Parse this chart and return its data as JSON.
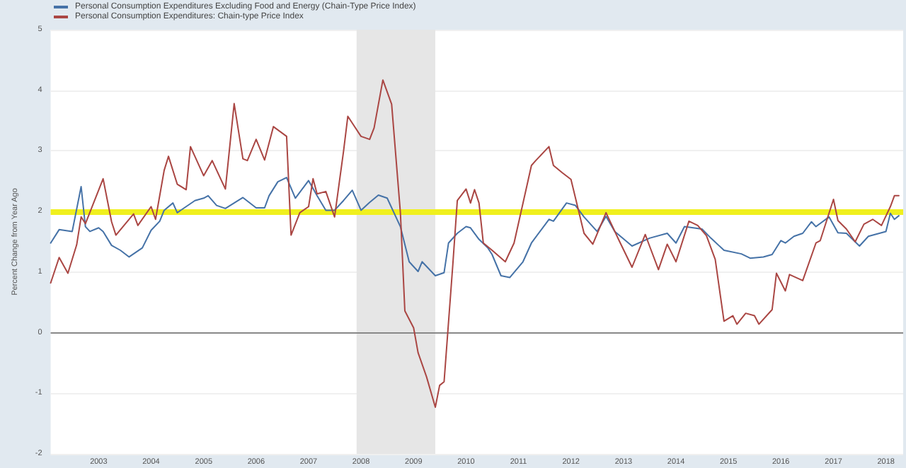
{
  "chart_data": {
    "type": "line",
    "ylabel": "Percent Change from Year Ago",
    "xlim": [
      "2002-02",
      "2018-05"
    ],
    "xticks": [
      "2003",
      "2004",
      "2005",
      "2006",
      "2007",
      "2008",
      "2009",
      "2010",
      "2011",
      "2012",
      "2013",
      "2014",
      "2015",
      "2016",
      "2017",
      "2018"
    ],
    "ylim": [
      -2,
      5
    ],
    "yticks": [
      -2,
      -1,
      0,
      1,
      2,
      3,
      4,
      5
    ],
    "grid": "y",
    "legend": "top left",
    "ref_lines": [
      {
        "axis": "y",
        "value": 2,
        "color": "#f0f01e"
      },
      {
        "axis": "y",
        "value": 0,
        "color": "#888888"
      }
    ],
    "bands": [
      {
        "axis": "x",
        "from": "2007-12",
        "to": "2009-06",
        "color": "#e6e6e6"
      }
    ],
    "series": [
      {
        "name": "Personal Consumption Expenditures Excluding Food and Energy (Chain-Type Price Index)",
        "color": "#4572a7",
        "x": [
          "2002-02",
          "2002-04",
          "2002-07",
          "2002-09",
          "2002-10",
          "2002-11",
          "2003-01",
          "2003-02",
          "2003-04",
          "2003-06",
          "2003-08",
          "2003-11",
          "2004-01",
          "2004-03",
          "2004-04",
          "2004-06",
          "2004-07",
          "2004-11",
          "2005-01",
          "2005-02",
          "2005-04",
          "2005-06",
          "2005-08",
          "2005-10",
          "2006-01",
          "2006-03",
          "2006-04",
          "2006-06",
          "2006-08",
          "2006-10",
          "2007-01",
          "2007-03",
          "2007-05",
          "2007-07",
          "2007-09",
          "2007-11",
          "2008-01",
          "2008-03",
          "2008-05",
          "2008-07",
          "2008-10",
          "2008-12",
          "2009-02",
          "2009-03",
          "2009-06",
          "2009-08",
          "2009-09",
          "2009-11",
          "2010-01",
          "2010-02",
          "2010-04",
          "2010-06",
          "2010-07",
          "2010-09",
          "2010-11",
          "2011-02",
          "2011-04",
          "2011-08",
          "2011-09",
          "2011-12",
          "2012-02",
          "2012-04",
          "2012-07",
          "2012-09",
          "2012-11",
          "2013-03",
          "2013-07",
          "2013-11",
          "2014-01",
          "2014-03",
          "2014-07",
          "2014-09",
          "2014-12",
          "2015-04",
          "2015-06",
          "2015-09",
          "2015-11",
          "2016-01",
          "2016-02",
          "2016-04",
          "2016-06",
          "2016-08",
          "2016-09",
          "2016-12",
          "2017-02",
          "2017-04",
          "2017-07",
          "2017-09",
          "2018-01",
          "2018-02",
          "2018-03",
          "2018-04"
        ],
        "values": [
          1.48,
          1.7,
          1.67,
          2.41,
          1.75,
          1.67,
          1.73,
          1.67,
          1.44,
          1.36,
          1.25,
          1.4,
          1.69,
          1.84,
          2.02,
          2.14,
          1.98,
          2.18,
          2.22,
          2.26,
          2.1,
          2.05,
          2.14,
          2.23,
          2.06,
          2.06,
          2.26,
          2.49,
          2.56,
          2.22,
          2.51,
          2.26,
          2.02,
          2.02,
          2.18,
          2.35,
          2.02,
          2.15,
          2.27,
          2.22,
          1.75,
          1.17,
          1.01,
          1.17,
          0.94,
          0.99,
          1.48,
          1.64,
          1.75,
          1.73,
          1.54,
          1.4,
          1.29,
          0.94,
          0.91,
          1.17,
          1.48,
          1.87,
          1.84,
          2.14,
          2.1,
          1.91,
          1.67,
          1.92,
          1.67,
          1.43,
          1.56,
          1.64,
          1.48,
          1.75,
          1.71,
          1.56,
          1.36,
          1.3,
          1.23,
          1.25,
          1.29,
          1.52,
          1.48,
          1.59,
          1.64,
          1.83,
          1.75,
          1.91,
          1.65,
          1.64,
          1.43,
          1.59,
          1.67,
          1.97,
          1.87,
          1.93
        ]
      },
      {
        "name": "Personal Consumption Expenditures: Chain-type Price Index",
        "color": "#aa4643",
        "x": [
          "2002-02",
          "2002-04",
          "2002-06",
          "2002-08",
          "2002-09",
          "2002-10",
          "2003-02",
          "2003-04",
          "2003-05",
          "2003-09",
          "2003-10",
          "2004-01",
          "2004-02",
          "2004-04",
          "2004-05",
          "2004-07",
          "2004-09",
          "2004-10",
          "2005-01",
          "2005-03",
          "2005-06",
          "2005-08",
          "2005-10",
          "2005-11",
          "2006-01",
          "2006-03",
          "2006-05",
          "2006-08",
          "2006-09",
          "2006-11",
          "2007-01",
          "2007-02",
          "2007-03",
          "2007-05",
          "2007-07",
          "2007-09",
          "2007-10",
          "2008-01",
          "2008-03",
          "2008-04",
          "2008-06",
          "2008-08",
          "2008-10",
          "2008-11",
          "2009-01",
          "2009-02",
          "2009-04",
          "2009-06",
          "2009-07",
          "2009-08",
          "2009-10",
          "2009-11",
          "2010-01",
          "2010-02",
          "2010-03",
          "2010-04",
          "2010-05",
          "2010-07",
          "2010-10",
          "2010-12",
          "2011-04",
          "2011-05",
          "2011-08",
          "2011-09",
          "2011-11",
          "2012-01",
          "2012-04",
          "2012-06",
          "2012-09",
          "2012-12",
          "2013-03",
          "2013-06",
          "2013-07",
          "2013-09",
          "2013-11",
          "2014-01",
          "2014-04",
          "2014-06",
          "2014-08",
          "2014-10",
          "2014-12",
          "2015-02",
          "2015-03",
          "2015-05",
          "2015-07",
          "2015-08",
          "2015-11",
          "2015-12",
          "2016-02",
          "2016-03",
          "2016-06",
          "2016-09",
          "2016-10",
          "2017-01",
          "2017-02",
          "2017-04",
          "2017-06",
          "2017-08",
          "2017-10",
          "2017-12",
          "2018-02",
          "2018-03",
          "2018-04"
        ],
        "values": [
          0.82,
          1.24,
          0.98,
          1.45,
          1.91,
          1.8,
          2.54,
          1.83,
          1.61,
          1.96,
          1.77,
          2.08,
          1.87,
          2.68,
          2.91,
          2.45,
          2.36,
          3.07,
          2.59,
          2.84,
          2.37,
          3.78,
          2.87,
          2.84,
          3.19,
          2.85,
          3.4,
          3.24,
          1.61,
          1.98,
          2.08,
          2.54,
          2.29,
          2.33,
          1.91,
          2.99,
          3.57,
          3.24,
          3.19,
          3.38,
          4.17,
          3.77,
          1.98,
          0.36,
          0.08,
          -0.33,
          -0.73,
          -1.23,
          -0.87,
          -0.81,
          1.13,
          2.18,
          2.37,
          2.14,
          2.36,
          2.14,
          1.48,
          1.36,
          1.17,
          1.48,
          2.76,
          2.84,
          3.07,
          2.76,
          2.64,
          2.53,
          1.64,
          1.46,
          1.98,
          1.52,
          1.08,
          1.62,
          1.43,
          1.04,
          1.46,
          1.17,
          1.84,
          1.77,
          1.6,
          1.21,
          0.19,
          0.28,
          0.14,
          0.32,
          0.28,
          0.14,
          0.38,
          0.98,
          0.69,
          0.96,
          0.86,
          1.48,
          1.52,
          2.2,
          1.85,
          1.71,
          1.5,
          1.79,
          1.87,
          1.77,
          2.08,
          2.26,
          2.26
        ]
      }
    ]
  }
}
